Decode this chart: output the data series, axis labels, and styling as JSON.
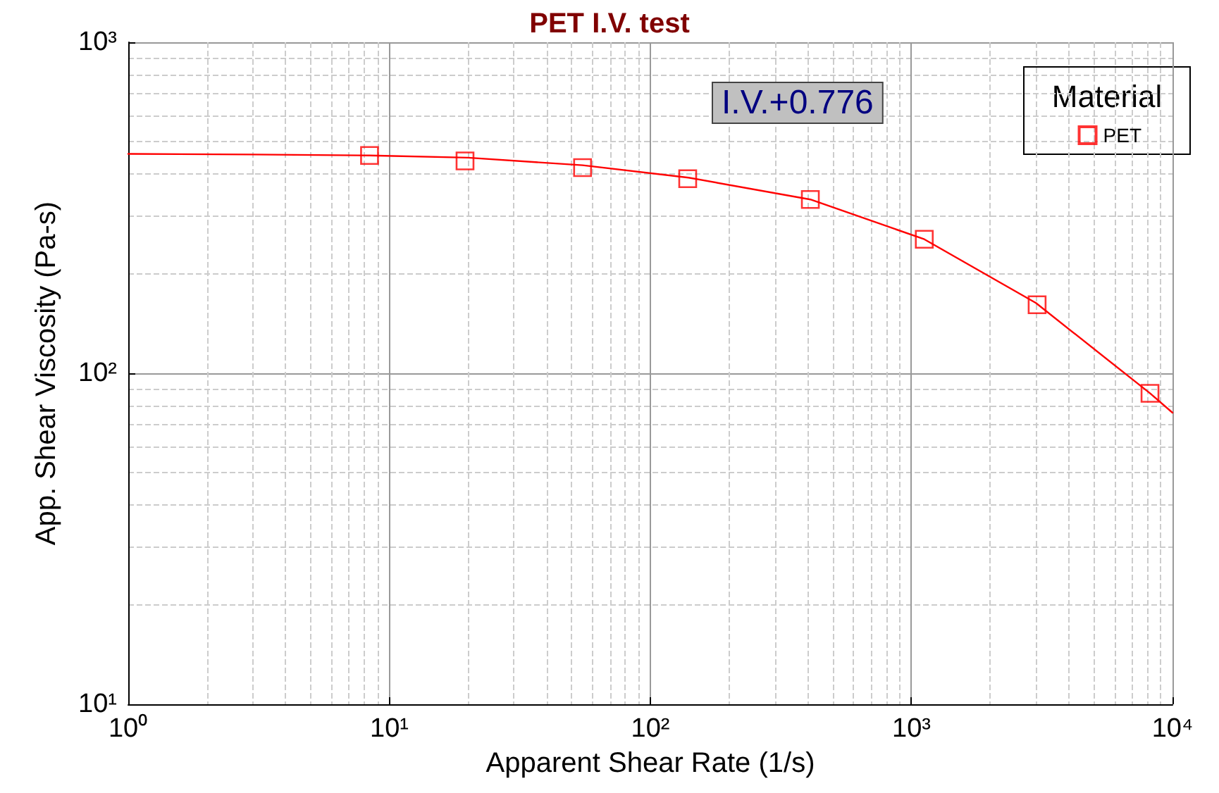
{
  "chart_data": {
    "type": "scatter",
    "title": "PET I.V. test",
    "xlabel": "Apparent Shear Rate (1/s)",
    "ylabel": "App. Shear Viscosity (Pa-s)",
    "legend_title": "Material",
    "annotations": [
      "I.V.+0.776"
    ],
    "log": "xy",
    "grid": true,
    "legend": "top right",
    "marker": "square",
    "xlim": [
      1,
      10000
    ],
    "xticks": [
      {
        "value": 1,
        "label": "10⁰"
      },
      {
        "value": 10,
        "label": "10¹"
      },
      {
        "value": 100,
        "label": "10²"
      },
      {
        "value": 1000,
        "label": "10³"
      },
      {
        "value": 10000,
        "label": "10⁴"
      }
    ],
    "ylim": [
      10,
      1000
    ],
    "yticks": [
      {
        "value": 10,
        "label": "10¹"
      },
      {
        "value": 100,
        "label": "10²"
      },
      {
        "value": 1000,
        "label": "10³"
      }
    ],
    "series": [
      {
        "type": "line",
        "color": "#ff0000",
        "marker": "none",
        "x": [
          1,
          3,
          8.4,
          20,
          55,
          140,
          410,
          1120,
          3000,
          8200,
          10000
        ],
        "values": [
          460,
          458,
          455,
          448,
          425,
          390,
          335,
          254,
          163,
          87,
          76
        ]
      },
      {
        "name": "PET",
        "color": "#ff0000",
        "x": [
          8.4,
          19.5,
          55,
          139,
          410,
          1120,
          3030,
          8200
        ],
        "values": [
          455,
          438,
          418,
          387,
          335,
          254,
          161,
          87
        ]
      }
    ]
  }
}
